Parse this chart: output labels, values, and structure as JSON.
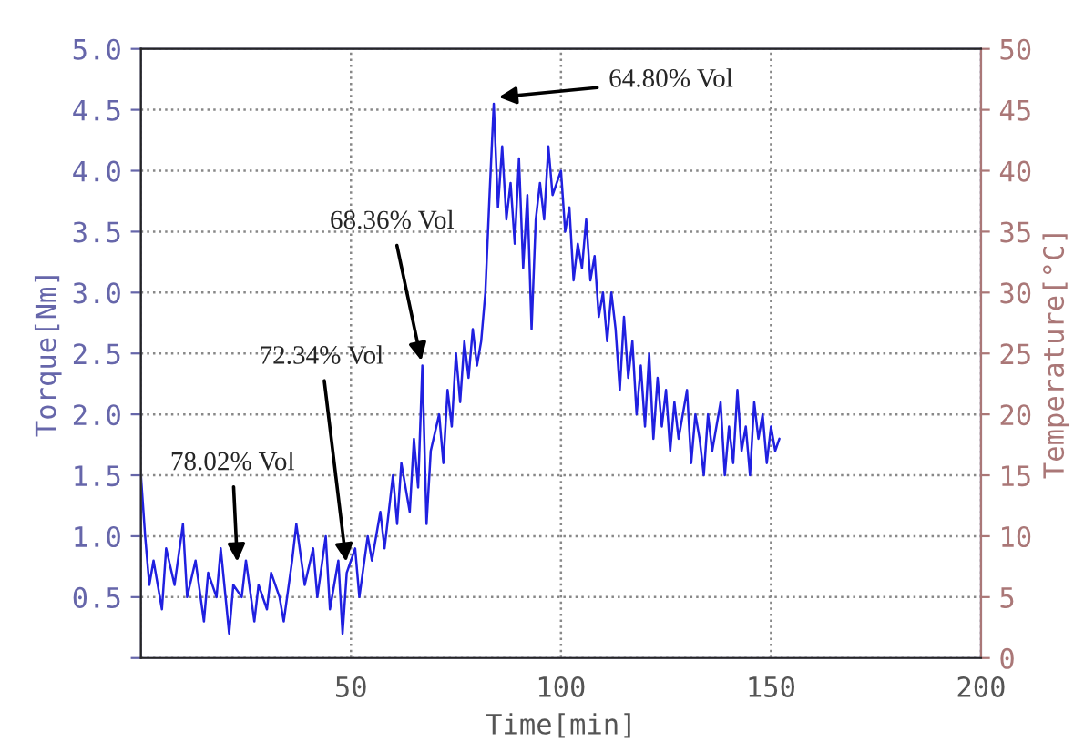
{
  "chart_data": {
    "type": "line",
    "xlabel": "Time[min]",
    "ylabel": "Torque[Nm]",
    "y2label": "Temperature[°C]",
    "xlim": [
      0,
      200
    ],
    "xticks": [
      {
        "value": 0,
        "label": null
      },
      50,
      100,
      150,
      200
    ],
    "ylim": [
      0,
      5.0
    ],
    "yticks": [
      {
        "value": 0,
        "label": null
      },
      {
        "value": 0.5,
        "label": "0.5"
      },
      {
        "value": 1.0,
        "label": "1.0"
      },
      {
        "value": 1.5,
        "label": "1.5"
      },
      {
        "value": 2.0,
        "label": "2.0"
      },
      {
        "value": 2.5,
        "label": "2.5"
      },
      {
        "value": 3.0,
        "label": "3.0"
      },
      {
        "value": 3.5,
        "label": "3.5"
      },
      {
        "value": 4.0,
        "label": "4.0"
      },
      {
        "value": 4.5,
        "label": "4.5"
      },
      {
        "value": 5.0,
        "label": "5.0"
      }
    ],
    "y2lim": [
      0,
      50
    ],
    "y2ticks": [
      0,
      5,
      10,
      15,
      20,
      25,
      30,
      35,
      40,
      45,
      50
    ],
    "grid": true,
    "marker": "none",
    "line_style": "solid",
    "series": [
      {
        "color": "#2020e0",
        "x": [
          0,
          1,
          2,
          3,
          5,
          6,
          8,
          10,
          11,
          13,
          15,
          16,
          18,
          19,
          21,
          22,
          24,
          25,
          27,
          28,
          30,
          31,
          33,
          34,
          36,
          37,
          39,
          41,
          42,
          44,
          45,
          47,
          48,
          49,
          51,
          52,
          54,
          55,
          57,
          58,
          60,
          61,
          62,
          64,
          65,
          66,
          67,
          68,
          69,
          71,
          72,
          73,
          74,
          75,
          76,
          77,
          78,
          79,
          80,
          81,
          82,
          83,
          84,
          85,
          86,
          87,
          88,
          89,
          90,
          91,
          92,
          93,
          94,
          95,
          96,
          97,
          98,
          100,
          101,
          102,
          103,
          104,
          105,
          106,
          107,
          108,
          109,
          110,
          111,
          112,
          113,
          114,
          115,
          116,
          117,
          118,
          119,
          120,
          121,
          122,
          123,
          124,
          125,
          126,
          127,
          128,
          130,
          131,
          132,
          133,
          134,
          135,
          136,
          138,
          139,
          140,
          141,
          142,
          143,
          144,
          145,
          146,
          147,
          148,
          149,
          150,
          151,
          152
        ],
        "values": [
          1.5,
          1.0,
          0.6,
          0.8,
          0.4,
          0.9,
          0.6,
          1.1,
          0.5,
          0.8,
          0.3,
          0.7,
          0.5,
          0.9,
          0.2,
          0.6,
          0.5,
          0.8,
          0.3,
          0.6,
          0.4,
          0.7,
          0.5,
          0.3,
          0.8,
          1.1,
          0.6,
          0.9,
          0.5,
          1.0,
          0.4,
          0.8,
          0.2,
          0.7,
          0.9,
          0.5,
          1.0,
          0.8,
          1.2,
          0.9,
          1.5,
          1.1,
          1.6,
          1.2,
          1.8,
          1.4,
          2.4,
          1.1,
          1.7,
          2.0,
          1.6,
          2.2,
          1.9,
          2.5,
          2.1,
          2.6,
          2.3,
          2.7,
          2.4,
          2.6,
          3.0,
          3.8,
          4.55,
          3.7,
          4.2,
          3.6,
          3.9,
          3.4,
          4.1,
          3.2,
          3.8,
          2.7,
          3.6,
          3.9,
          3.6,
          4.2,
          3.8,
          4.0,
          3.5,
          3.7,
          3.1,
          3.4,
          3.2,
          3.6,
          3.1,
          3.3,
          2.8,
          3.0,
          2.6,
          3.0,
          2.7,
          2.2,
          2.8,
          2.3,
          2.6,
          2.0,
          2.4,
          1.9,
          2.5,
          1.8,
          2.3,
          1.9,
          2.2,
          1.7,
          2.1,
          1.8,
          2.2,
          1.6,
          2.0,
          1.8,
          1.5,
          2.0,
          1.7,
          2.1,
          1.5,
          1.9,
          1.6,
          2.2,
          1.7,
          1.9,
          1.5,
          2.1,
          1.8,
          2.0,
          1.6,
          1.9,
          1.7,
          1.8
        ]
      }
    ],
    "annotations": [
      {
        "text": "78.02% Vol",
        "x": 23,
        "y": 0.75
      },
      {
        "text": "72.34% Vol",
        "x": 49,
        "y": 0.75
      },
      {
        "text": "68.36% Vol",
        "x": 67,
        "y": 2.4
      },
      {
        "text": "64.80% Vol",
        "x": 84,
        "y": 4.6
      }
    ]
  }
}
